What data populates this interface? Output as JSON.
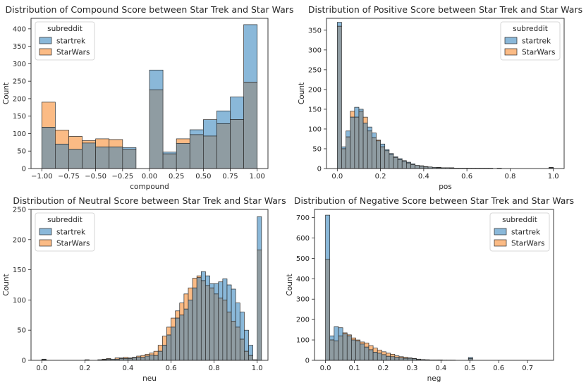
{
  "figure_type": "seaborn histplot grid (2x2), overlaid histograms with grey overlap",
  "colors": {
    "startrek": "#1f77b4",
    "StarWars": "#ff7f0e",
    "startrek_fill": "#8ab8d9",
    "StarWars_fill": "#fbbb85",
    "overlap_fill": "#8f9ca2",
    "edge": "#2b2b2b"
  },
  "legend": {
    "title": "subreddit",
    "entries": [
      "startrek",
      "StarWars"
    ]
  },
  "chart_data": [
    {
      "type": "bar",
      "subtype": "overlaid-histogram",
      "title": "Distribution of Compound Score between Star Trek and Star Wars",
      "xlabel": "compound",
      "ylabel": "Count",
      "xlim": [
        -1.1,
        1.1
      ],
      "ylim": [
        0,
        430
      ],
      "xticks": [
        -1.0,
        -0.75,
        -0.5,
        -0.25,
        0.0,
        0.25,
        0.5,
        0.75,
        1.0
      ],
      "xtick_labels": [
        "−1.00",
        "−0.75",
        "−0.50",
        "−0.25",
        "0.00",
        "0.25",
        "0.50",
        "0.75",
        "1.00"
      ],
      "yticks": [
        0,
        50,
        100,
        150,
        200,
        250,
        300,
        350,
        400
      ],
      "ytick_labels": [
        "0",
        "50",
        "100",
        "150",
        "200",
        "250",
        "300",
        "350",
        "400"
      ],
      "legend_position": "top-left",
      "bin_start": -1.0,
      "bin_width": 0.125,
      "series": [
        {
          "name": "startrek",
          "values": [
            118,
            70,
            55,
            73,
            62,
            62,
            60,
            0,
            282,
            47,
            72,
            111,
            140,
            165,
            205,
            412
          ]
        },
        {
          "name": "StarWars",
          "values": [
            190,
            110,
            92,
            80,
            85,
            83,
            55,
            0,
            225,
            42,
            85,
            97,
            93,
            128,
            140,
            247
          ]
        }
      ]
    },
    {
      "type": "bar",
      "subtype": "overlaid-histogram",
      "title": "Distribution of Positive Score between Star Trek and Star Wars",
      "xlabel": "pos",
      "ylabel": "Count",
      "xlim": [
        -0.05,
        1.05
      ],
      "ylim": [
        0,
        380
      ],
      "xticks": [
        0.0,
        0.2,
        0.4,
        0.6,
        0.8,
        1.0
      ],
      "xtick_labels": [
        "0.0",
        "0.2",
        "0.4",
        "0.6",
        "0.8",
        "1.0"
      ],
      "yticks": [
        0,
        50,
        100,
        150,
        200,
        250,
        300,
        350
      ],
      "ytick_labels": [
        "0",
        "50",
        "100",
        "150",
        "200",
        "250",
        "300",
        "350"
      ],
      "legend_position": "top-right",
      "bin_start": 0.0,
      "bin_width": 0.02,
      "series": [
        {
          "name": "startrek",
          "values": [
            370,
            55,
            95,
            130,
            155,
            150,
            115,
            105,
            90,
            70,
            62,
            48,
            38,
            30,
            25,
            20,
            16,
            12,
            8,
            7,
            5,
            4,
            3,
            3,
            2,
            2,
            2,
            1,
            1,
            1,
            1,
            1,
            1,
            1,
            1,
            1,
            0,
            1,
            0,
            0,
            0,
            0,
            0,
            0,
            0,
            0,
            0,
            0,
            0,
            3
          ]
        },
        {
          "name": "StarWars",
          "values": [
            360,
            50,
            80,
            145,
            130,
            145,
            130,
            95,
            78,
            72,
            55,
            45,
            35,
            28,
            22,
            18,
            14,
            10,
            8,
            6,
            4,
            4,
            3,
            2,
            2,
            2,
            1,
            1,
            1,
            1,
            1,
            1,
            1,
            1,
            1,
            1,
            0,
            1,
            0,
            0,
            0,
            0,
            0,
            0,
            0,
            0,
            0,
            0,
            0,
            2
          ]
        }
      ]
    },
    {
      "type": "bar",
      "subtype": "overlaid-histogram",
      "title": "Distribution of Neutral Score between Star Trek and Star Wars",
      "xlabel": "neu",
      "ylabel": "Count",
      "xlim": [
        -0.05,
        1.05
      ],
      "ylim": [
        0,
        250
      ],
      "xticks": [
        0.0,
        0.2,
        0.4,
        0.6,
        0.8,
        1.0
      ],
      "xtick_labels": [
        "0.0",
        "0.2",
        "0.4",
        "0.6",
        "0.8",
        "1.0"
      ],
      "yticks": [
        0,
        50,
        100,
        150,
        200,
        250
      ],
      "ytick_labels": [
        "0",
        "50",
        "100",
        "150",
        "200",
        "250"
      ],
      "legend_position": "top-left",
      "bin_start": 0.0,
      "bin_width": 0.02,
      "series": [
        {
          "name": "startrek",
          "values": [
            2,
            0,
            0,
            0,
            0,
            0,
            0,
            0,
            0,
            0,
            1,
            0,
            0,
            1,
            1,
            2,
            2,
            2,
            3,
            3,
            3,
            4,
            5,
            5,
            7,
            9,
            8,
            15,
            25,
            42,
            55,
            70,
            75,
            85,
            100,
            120,
            137,
            147,
            140,
            127,
            127,
            130,
            135,
            125,
            118,
            95,
            80,
            50,
            25,
            1,
            238
          ]
        },
        {
          "name": "StarWars",
          "values": [
            1,
            0,
            0,
            0,
            0,
            0,
            0,
            0,
            0,
            0,
            0,
            0,
            0,
            0,
            2,
            3,
            2,
            4,
            4,
            5,
            4,
            5,
            7,
            8,
            10,
            12,
            15,
            25,
            40,
            55,
            70,
            82,
            95,
            110,
            120,
            136,
            140,
            132,
            124,
            120,
            110,
            103,
            100,
            80,
            65,
            55,
            35,
            15,
            8,
            1,
            183
          ]
        }
      ]
    },
    {
      "type": "bar",
      "subtype": "overlaid-histogram",
      "title": "Distribution of Negative Score between Star Trek and Star Wars",
      "xlabel": "neg",
      "ylabel": "Count",
      "xlim": [
        -0.038,
        0.79
      ],
      "ylim": [
        0,
        740
      ],
      "xticks": [
        0.0,
        0.1,
        0.2,
        0.3,
        0.4,
        0.5,
        0.6,
        0.7
      ],
      "xtick_labels": [
        "0.0",
        "0.1",
        "0.2",
        "0.3",
        "0.4",
        "0.5",
        "0.6",
        "0.7"
      ],
      "yticks": [
        0,
        100,
        200,
        300,
        400,
        500,
        600,
        700
      ],
      "ytick_labels": [
        "0",
        "100",
        "200",
        "300",
        "400",
        "500",
        "600",
        "700"
      ],
      "legend_position": "top-right",
      "bin_start": 0.0,
      "bin_width": 0.015,
      "series": [
        {
          "name": "startrek",
          "values": [
            712,
            120,
            165,
            160,
            130,
            120,
            100,
            95,
            80,
            65,
            52,
            40,
            35,
            28,
            20,
            18,
            15,
            12,
            10,
            10,
            8,
            5,
            4,
            3,
            2,
            2,
            2,
            1,
            1,
            1,
            0,
            0,
            0,
            14,
            0,
            0,
            0,
            0,
            0,
            0
          ]
        },
        {
          "name": "StarWars",
          "values": [
            495,
            100,
            95,
            120,
            135,
            125,
            110,
            100,
            90,
            85,
            72,
            60,
            50,
            42,
            35,
            30,
            22,
            18,
            15,
            12,
            9,
            6,
            4,
            3,
            2,
            2,
            1,
            1,
            1,
            1,
            0,
            0,
            0,
            8,
            0,
            0,
            0,
            0,
            0,
            0
          ]
        }
      ]
    }
  ]
}
